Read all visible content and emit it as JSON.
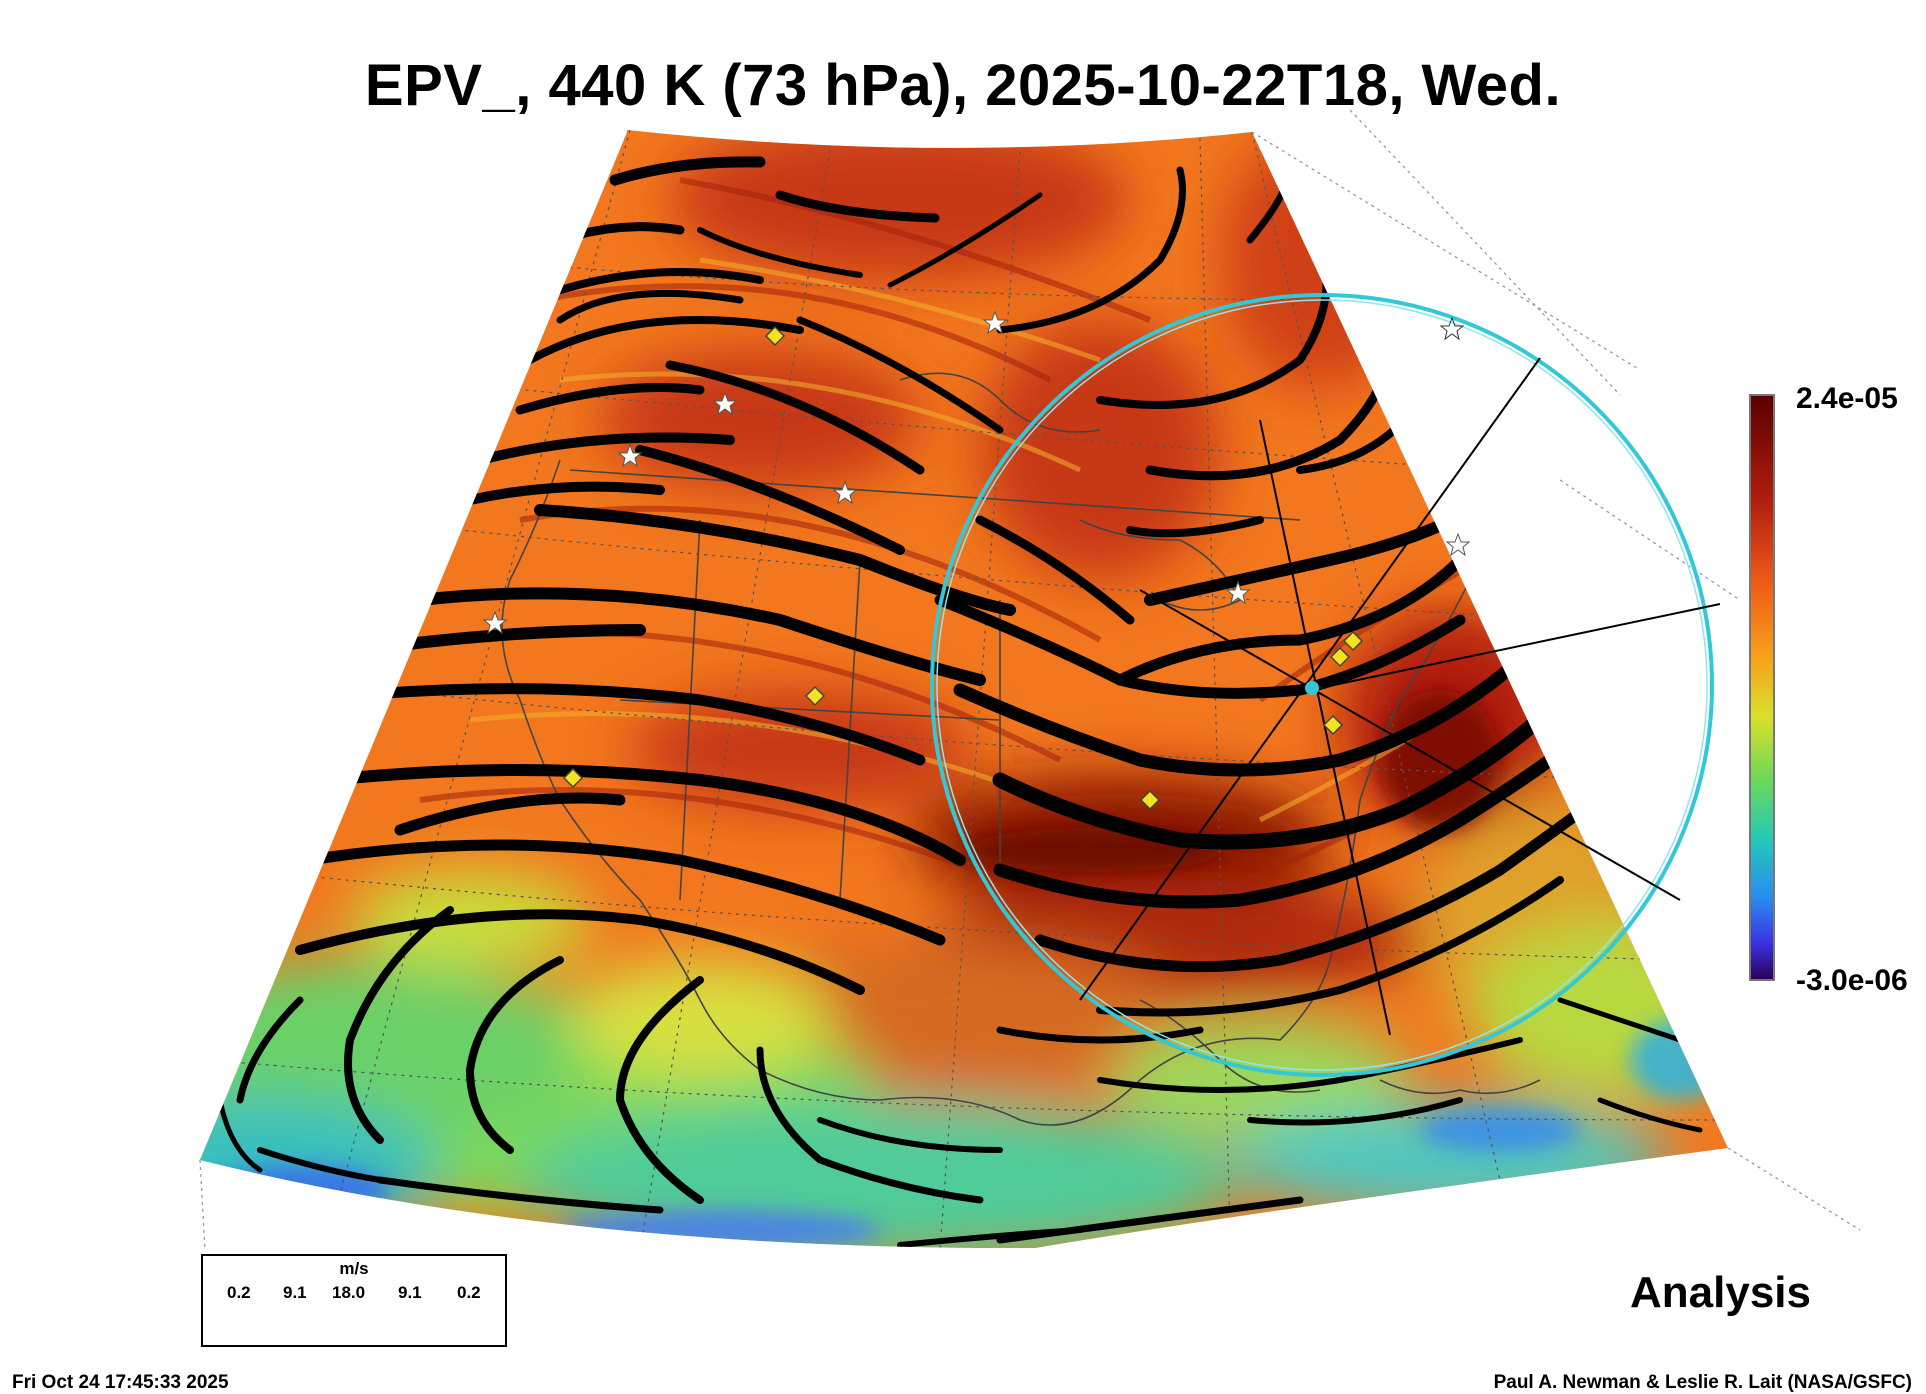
{
  "title": "EPV_, 440 K (73 hPa), 2025-10-22T18, Wed.",
  "colorbar": {
    "max_label": "2.4e-05",
    "min_label": "-3.0e-06"
  },
  "label": "Analysis",
  "legend": {
    "unit": "m/s",
    "ticks": [
      "0.2",
      "9.1",
      "18.0",
      "9.1",
      "0.2"
    ]
  },
  "timestamp": "Fri Oct 24 17:45:33 2025",
  "credit": "Paul A. Newman & Leslie R. Lait (NASA/GSFC)",
  "colors": {
    "orange": "#f2771e",
    "red": "#c73714",
    "darkred": "#8a1206",
    "yellow": "#e8d42a",
    "green": "#7ed957",
    "cyan": "#33c8e0",
    "blue": "#3355ee",
    "circle": "#33c8d8",
    "streamline": "#000000"
  }
}
